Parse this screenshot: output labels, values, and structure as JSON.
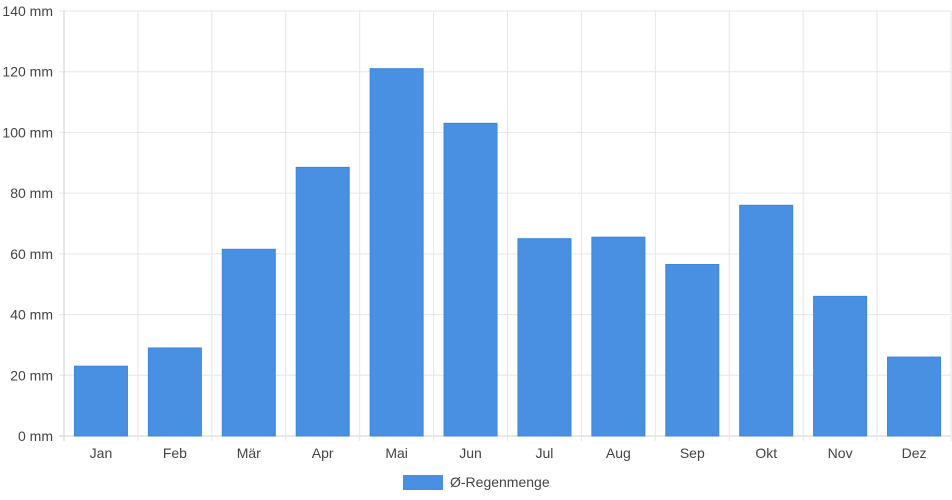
{
  "chart_data": {
    "type": "bar",
    "categories": [
      "Jan",
      "Feb",
      "Mär",
      "Apr",
      "Mai",
      "Jun",
      "Jul",
      "Aug",
      "Sep",
      "Okt",
      "Nov",
      "Dez"
    ],
    "series": [
      {
        "name": "Ø-Regenmenge",
        "values": [
          23,
          29,
          61.5,
          88.5,
          121,
          103,
          65,
          65.5,
          56.5,
          76,
          46,
          26
        ]
      }
    ],
    "ylim": [
      0,
      140
    ],
    "y_ticks": [
      0,
      20,
      40,
      60,
      80,
      100,
      120,
      140
    ],
    "y_unit": "mm",
    "grid": true,
    "legend_position": "bottom",
    "color": "#4a90e2"
  }
}
